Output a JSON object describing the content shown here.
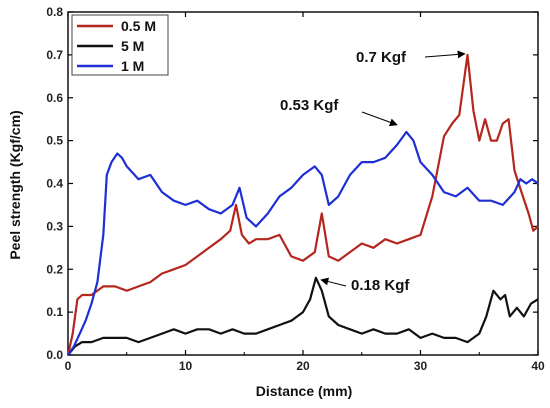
{
  "chart_data": {
    "type": "line",
    "xlabel": "Distance (mm)",
    "ylabel": "Peel strength (Kgf/cm)",
    "xlim": [
      0,
      40
    ],
    "ylim": [
      0,
      0.8
    ],
    "xticks": [
      0,
      10,
      20,
      30,
      40
    ],
    "yticks": [
      0.0,
      0.1,
      0.2,
      0.3,
      0.4,
      0.5,
      0.6,
      0.7,
      0.8
    ],
    "ytick_labels": [
      "0.0",
      "0.1",
      "0.2",
      "0.3",
      "0.4",
      "0.5",
      "0.6",
      "0.7",
      "0.8"
    ],
    "grid": false,
    "legend_position": "top-left",
    "series": [
      {
        "name": "0.5 M",
        "color": "#b5261e",
        "x": [
          0,
          0.4,
          0.8,
          1.2,
          2,
          3,
          4,
          5,
          6,
          7,
          8,
          9,
          10,
          11,
          12,
          13,
          13.8,
          14.3,
          14.8,
          15.4,
          16,
          17,
          18,
          19,
          20,
          21,
          21.6,
          22.2,
          23,
          24,
          25,
          26,
          27,
          28,
          29,
          30,
          31,
          32,
          32.7,
          33.3,
          34,
          34.5,
          35,
          35.5,
          36,
          36.5,
          37,
          37.5,
          38,
          38.6,
          39.2,
          39.6,
          40
        ],
        "values": [
          0.0,
          0.05,
          0.13,
          0.14,
          0.14,
          0.16,
          0.16,
          0.15,
          0.16,
          0.17,
          0.19,
          0.2,
          0.21,
          0.23,
          0.25,
          0.27,
          0.29,
          0.35,
          0.28,
          0.26,
          0.27,
          0.27,
          0.28,
          0.23,
          0.22,
          0.24,
          0.33,
          0.23,
          0.22,
          0.24,
          0.26,
          0.25,
          0.27,
          0.26,
          0.27,
          0.28,
          0.37,
          0.51,
          0.54,
          0.56,
          0.7,
          0.57,
          0.5,
          0.55,
          0.5,
          0.5,
          0.54,
          0.55,
          0.43,
          0.38,
          0.33,
          0.29,
          0.3
        ]
      },
      {
        "name": "5 M",
        "color": "#111111",
        "x": [
          0,
          0.6,
          1.2,
          2,
          3,
          4,
          5,
          6,
          7,
          8,
          9,
          10,
          11,
          12,
          13,
          14,
          15,
          16,
          17,
          18,
          19,
          20,
          20.6,
          21.1,
          21.6,
          22.2,
          23,
          24,
          25,
          26,
          27,
          28,
          29,
          30,
          31,
          32,
          33,
          34,
          35,
          35.6,
          36.2,
          36.8,
          37.2,
          37.6,
          38.2,
          38.8,
          39.4,
          40
        ],
        "values": [
          0.0,
          0.02,
          0.03,
          0.03,
          0.04,
          0.04,
          0.04,
          0.03,
          0.04,
          0.05,
          0.06,
          0.05,
          0.06,
          0.06,
          0.05,
          0.06,
          0.05,
          0.05,
          0.06,
          0.07,
          0.08,
          0.1,
          0.13,
          0.18,
          0.15,
          0.09,
          0.07,
          0.06,
          0.05,
          0.06,
          0.05,
          0.05,
          0.06,
          0.04,
          0.05,
          0.04,
          0.04,
          0.03,
          0.05,
          0.09,
          0.15,
          0.13,
          0.14,
          0.09,
          0.11,
          0.09,
          0.12,
          0.13
        ]
      },
      {
        "name": "1 M",
        "color": "#1f2fd6",
        "x": [
          0,
          0.5,
          1,
          1.5,
          2,
          2.5,
          3,
          3.3,
          3.7,
          4.2,
          4.6,
          5,
          6,
          7,
          8,
          9,
          10,
          11,
          12,
          13,
          14,
          14.6,
          15.2,
          16,
          17,
          18,
          19,
          20,
          21,
          21.6,
          22.2,
          23,
          24,
          25,
          26,
          27,
          28,
          28.8,
          29.4,
          30,
          31,
          32,
          33,
          34,
          35,
          36,
          37,
          38,
          38.5,
          39,
          39.5,
          40
        ],
        "values": [
          0.0,
          0.02,
          0.05,
          0.08,
          0.12,
          0.17,
          0.28,
          0.42,
          0.45,
          0.47,
          0.46,
          0.44,
          0.41,
          0.42,
          0.38,
          0.36,
          0.35,
          0.36,
          0.34,
          0.33,
          0.35,
          0.39,
          0.32,
          0.3,
          0.33,
          0.37,
          0.39,
          0.42,
          0.44,
          0.42,
          0.35,
          0.37,
          0.42,
          0.45,
          0.45,
          0.46,
          0.49,
          0.52,
          0.5,
          0.45,
          0.42,
          0.38,
          0.37,
          0.39,
          0.36,
          0.36,
          0.35,
          0.38,
          0.41,
          0.4,
          0.41,
          0.4
        ]
      }
    ],
    "annotations": [
      {
        "text": "0.7 Kgf",
        "x": 34.1,
        "y": 0.7,
        "label_anchor": "left-of-arrow"
      },
      {
        "text": "0.53 Kgf",
        "x": 28.5,
        "y": 0.53,
        "label_anchor": "left-of-arrow"
      },
      {
        "text": "0.18 Kgf",
        "x": 21.3,
        "y": 0.18,
        "label_anchor": "right-of-arrow"
      }
    ]
  }
}
